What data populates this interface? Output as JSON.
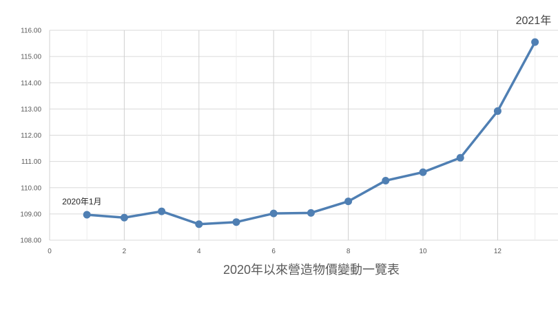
{
  "chart_data": {
    "type": "line",
    "title": "",
    "xlabel": "2020年以來營造物價變動一覽表",
    "ylabel": "",
    "xlim": [
      0,
      14
    ],
    "ylim": [
      108.0,
      116.0
    ],
    "x_ticks": [
      0,
      2,
      4,
      6,
      8,
      10,
      12
    ],
    "y_ticks": [
      108.0,
      109.0,
      110.0,
      111.0,
      112.0,
      113.0,
      114.0,
      115.0,
      116.0
    ],
    "grid": true,
    "series": [
      {
        "x": [
          1,
          2,
          3,
          4,
          5,
          6,
          7,
          8,
          9,
          10,
          11,
          12,
          13
        ],
        "values": [
          108.97,
          108.86,
          109.1,
          108.61,
          108.69,
          109.02,
          109.04,
          109.48,
          110.27,
          110.59,
          111.14,
          112.92,
          115.55
        ],
        "color": "#4f7fb3"
      }
    ],
    "annotations": [
      {
        "text": "2020年1月",
        "x": 1,
        "y": 108.97
      },
      {
        "text": "2021年",
        "x": 13,
        "y": 115.55
      }
    ]
  }
}
